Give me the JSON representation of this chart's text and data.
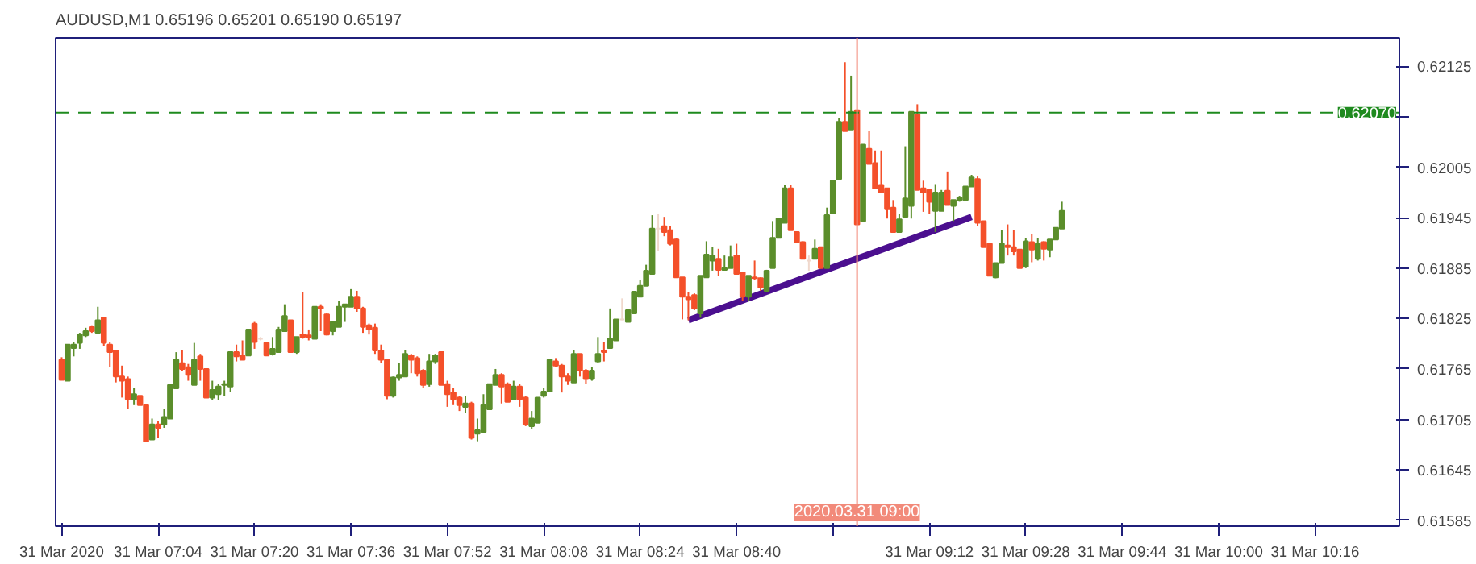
{
  "chart_data": {
    "type": "candlestick",
    "title": "AUDUSD,M1  0.65196 0.65201 0.65190 0.65197",
    "x": [
      "2020-03-31T06:48",
      "2020-03-31T06:49",
      "2020-03-31T06:50",
      "2020-03-31T06:51",
      "2020-03-31T06:52",
      "2020-03-31T06:53",
      "2020-03-31T06:54",
      "2020-03-31T06:55",
      "2020-03-31T06:56",
      "2020-03-31T06:57",
      "2020-03-31T06:58",
      "2020-03-31T06:59",
      "2020-03-31T07:00",
      "2020-03-31T07:01",
      "2020-03-31T07:02",
      "2020-03-31T07:03",
      "2020-03-31T07:04",
      "2020-03-31T07:05",
      "2020-03-31T07:06",
      "2020-03-31T07:07",
      "2020-03-31T07:08",
      "2020-03-31T07:09",
      "2020-03-31T07:10",
      "2020-03-31T07:11",
      "2020-03-31T07:12",
      "2020-03-31T07:13",
      "2020-03-31T07:14",
      "2020-03-31T07:15",
      "2020-03-31T07:16",
      "2020-03-31T07:17",
      "2020-03-31T07:18",
      "2020-03-31T07:19",
      "2020-03-31T07:20",
      "2020-03-31T07:21",
      "2020-03-31T07:22",
      "2020-03-31T07:23",
      "2020-03-31T07:24",
      "2020-03-31T07:25",
      "2020-03-31T07:26",
      "2020-03-31T07:27",
      "2020-03-31T07:28",
      "2020-03-31T07:29",
      "2020-03-31T07:30",
      "2020-03-31T07:31",
      "2020-03-31T07:32",
      "2020-03-31T07:33",
      "2020-03-31T07:34",
      "2020-03-31T07:35",
      "2020-03-31T07:36",
      "2020-03-31T07:37",
      "2020-03-31T07:38",
      "2020-03-31T07:39",
      "2020-03-31T07:40",
      "2020-03-31T07:41",
      "2020-03-31T07:42",
      "2020-03-31T07:43",
      "2020-03-31T07:44",
      "2020-03-31T07:45",
      "2020-03-31T07:46",
      "2020-03-31T07:47",
      "2020-03-31T07:48",
      "2020-03-31T07:49",
      "2020-03-31T07:50",
      "2020-03-31T07:51",
      "2020-03-31T07:52",
      "2020-03-31T07:53",
      "2020-03-31T07:54",
      "2020-03-31T07:55",
      "2020-03-31T07:56",
      "2020-03-31T07:57",
      "2020-03-31T07:58",
      "2020-03-31T07:59",
      "2020-03-31T08:00",
      "2020-03-31T08:01",
      "2020-03-31T08:02",
      "2020-03-31T08:03",
      "2020-03-31T08:04",
      "2020-03-31T08:05",
      "2020-03-31T08:06",
      "2020-03-31T08:07",
      "2020-03-31T08:08",
      "2020-03-31T08:09",
      "2020-03-31T08:10",
      "2020-03-31T08:11",
      "2020-03-31T08:12",
      "2020-03-31T08:13",
      "2020-03-31T08:14",
      "2020-03-31T08:15",
      "2020-03-31T08:16",
      "2020-03-31T08:17",
      "2020-03-31T08:18",
      "2020-03-31T08:19",
      "2020-03-31T08:20",
      "2020-03-31T08:21",
      "2020-03-31T08:22",
      "2020-03-31T08:23",
      "2020-03-31T08:24",
      "2020-03-31T08:25",
      "2020-03-31T08:26",
      "2020-03-31T08:27",
      "2020-03-31T08:28",
      "2020-03-31T08:29",
      "2020-03-31T08:30",
      "2020-03-31T08:31",
      "2020-03-31T08:32",
      "2020-03-31T08:33",
      "2020-03-31T08:34",
      "2020-03-31T08:35",
      "2020-03-31T08:36",
      "2020-03-31T08:37",
      "2020-03-31T08:38",
      "2020-03-31T08:39",
      "2020-03-31T08:40",
      "2020-03-31T08:41",
      "2020-03-31T08:42",
      "2020-03-31T08:43",
      "2020-03-31T08:44",
      "2020-03-31T08:45",
      "2020-03-31T08:46",
      "2020-03-31T08:47",
      "2020-03-31T08:48",
      "2020-03-31T08:49",
      "2020-03-31T08:50",
      "2020-03-31T08:51",
      "2020-03-31T08:52",
      "2020-03-31T08:53",
      "2020-03-31T08:54",
      "2020-03-31T08:55",
      "2020-03-31T08:56",
      "2020-03-31T08:57",
      "2020-03-31T08:58",
      "2020-03-31T08:59",
      "2020-03-31T09:00",
      "2020-03-31T09:01",
      "2020-03-31T09:02",
      "2020-03-31T09:03",
      "2020-03-31T09:04",
      "2020-03-31T09:05",
      "2020-03-31T09:06",
      "2020-03-31T09:07",
      "2020-03-31T09:08",
      "2020-03-31T09:09",
      "2020-03-31T09:10",
      "2020-03-31T09:11",
      "2020-03-31T09:12",
      "2020-03-31T09:13",
      "2020-03-31T09:14",
      "2020-03-31T09:15",
      "2020-03-31T09:16",
      "2020-03-31T09:17",
      "2020-03-31T09:18",
      "2020-03-31T09:19",
      "2020-03-31T09:20",
      "2020-03-31T09:21",
      "2020-03-31T09:22",
      "2020-03-31T09:23",
      "2020-03-31T09:24",
      "2020-03-31T09:25",
      "2020-03-31T09:26",
      "2020-03-31T09:27",
      "2020-03-31T09:28",
      "2020-03-31T09:29",
      "2020-03-31T09:30",
      "2020-03-31T09:31",
      "2020-03-31T09:32",
      "2020-03-31T09:33",
      "2020-03-31T09:34"
    ],
    "ohlc": [
      [
        0.61776,
        0.61779,
        0.61752,
        0.61752
      ],
      [
        0.61751,
        0.61794,
        0.61751,
        0.61794
      ],
      [
        0.6179,
        0.61797,
        0.6178,
        0.61794
      ],
      [
        0.61796,
        0.61808,
        0.61789,
        0.61806
      ],
      [
        0.61805,
        0.61814,
        0.61803,
        0.6181
      ],
      [
        0.61815,
        0.61817,
        0.61808,
        0.6181
      ],
      [
        0.61808,
        0.61839,
        0.61808,
        0.61823
      ],
      [
        0.61826,
        0.61826,
        0.61792,
        0.61796
      ],
      [
        0.61794,
        0.61797,
        0.61767,
        0.61785
      ],
      [
        0.61787,
        0.61787,
        0.61749,
        0.61756
      ],
      [
        0.61756,
        0.61769,
        0.61731,
        0.61751
      ],
      [
        0.61753,
        0.61756,
        0.61717,
        0.61729
      ],
      [
        0.61729,
        0.61742,
        0.61722,
        0.61735
      ],
      [
        0.61733,
        0.61733,
        0.61722,
        0.61722
      ],
      [
        0.61722,
        0.61722,
        0.61678,
        0.61679
      ],
      [
        0.61681,
        0.61706,
        0.61681,
        0.61699
      ],
      [
        0.61699,
        0.61703,
        0.61683,
        0.61695
      ],
      [
        0.61699,
        0.61717,
        0.61695,
        0.61708
      ],
      [
        0.61706,
        0.61746,
        0.61706,
        0.61746
      ],
      [
        0.61742,
        0.61785,
        0.61742,
        0.61776
      ],
      [
        0.61772,
        0.61787,
        0.61763,
        0.61765
      ],
      [
        0.61767,
        0.61771,
        0.61751,
        0.61758
      ],
      [
        0.61746,
        0.61796,
        0.61746,
        0.61776
      ],
      [
        0.6178,
        0.61783,
        0.61751,
        0.61765
      ],
      [
        0.61765,
        0.61765,
        0.61731,
        0.61731
      ],
      [
        0.61731,
        0.61751,
        0.61728,
        0.6174
      ],
      [
        0.61735,
        0.61747,
        0.61728,
        0.61744
      ],
      [
        0.61746,
        0.61751,
        0.61733,
        0.61747
      ],
      [
        0.61744,
        0.61785,
        0.61738,
        0.61785
      ],
      [
        0.61785,
        0.61794,
        0.61774,
        0.6178
      ],
      [
        0.61781,
        0.61799,
        0.61776,
        0.61776
      ],
      [
        0.61781,
        0.61812,
        0.61781,
        0.61812
      ],
      [
        0.61819,
        0.61821,
        0.61789,
        0.61797
      ],
      [
        0.61801,
        0.61803,
        0.61799,
        0.61801
      ],
      [
        0.61796,
        0.61797,
        0.61781,
        0.61781
      ],
      [
        0.61783,
        0.61803,
        0.61781,
        0.61789
      ],
      [
        0.61785,
        0.61815,
        0.61785,
        0.61812
      ],
      [
        0.6181,
        0.61842,
        0.6181,
        0.61828
      ],
      [
        0.61823,
        0.61823,
        0.61785,
        0.61785
      ],
      [
        0.61785,
        0.61803,
        0.61783,
        0.61803
      ],
      [
        0.61806,
        0.61857,
        0.61801,
        0.61803
      ],
      [
        0.61805,
        0.61812,
        0.61799,
        0.61803
      ],
      [
        0.61801,
        0.61839,
        0.61801,
        0.61839
      ],
      [
        0.61839,
        0.61842,
        0.6181,
        0.61837
      ],
      [
        0.6183,
        0.61831,
        0.61805,
        0.61806
      ],
      [
        0.6181,
        0.61821,
        0.61805,
        0.61821
      ],
      [
        0.61815,
        0.61846,
        0.61815,
        0.61839
      ],
      [
        0.61839,
        0.61842,
        0.61821,
        0.61842
      ],
      [
        0.61839,
        0.6186,
        0.61839,
        0.61851
      ],
      [
        0.61851,
        0.61858,
        0.61833,
        0.61837
      ],
      [
        0.61837,
        0.61839,
        0.61808,
        0.61815
      ],
      [
        0.61817,
        0.61819,
        0.61806,
        0.61812
      ],
      [
        0.61814,
        0.61819,
        0.61783,
        0.61787
      ],
      [
        0.61787,
        0.61794,
        0.61772,
        0.61776
      ],
      [
        0.61776,
        0.61776,
        0.61729,
        0.61733
      ],
      [
        0.61733,
        0.61756,
        0.61731,
        0.61755
      ],
      [
        0.61755,
        0.61772,
        0.61751,
        0.61758
      ],
      [
        0.61756,
        0.61787,
        0.61756,
        0.61783
      ],
      [
        0.61781,
        0.61783,
        0.6176,
        0.61776
      ],
      [
        0.61778,
        0.6178,
        0.61756,
        0.6176
      ],
      [
        0.61763,
        0.61765,
        0.61742,
        0.61746
      ],
      [
        0.61747,
        0.61783,
        0.61744,
        0.61774
      ],
      [
        0.61774,
        0.61783,
        0.61771,
        0.61781
      ],
      [
        0.61785,
        0.61785,
        0.61746,
        0.61746
      ],
      [
        0.61747,
        0.61751,
        0.6172,
        0.61735
      ],
      [
        0.61737,
        0.61742,
        0.61722,
        0.61729
      ],
      [
        0.61731,
        0.61733,
        0.61715,
        0.61722
      ],
      [
        0.6172,
        0.61733,
        0.61713,
        0.61724
      ],
      [
        0.61724,
        0.61726,
        0.61681,
        0.61683
      ],
      [
        0.61688,
        0.61706,
        0.61679,
        0.61692
      ],
      [
        0.6169,
        0.61735,
        0.6169,
        0.61722
      ],
      [
        0.61717,
        0.61747,
        0.61717,
        0.61747
      ],
      [
        0.61746,
        0.61765,
        0.61746,
        0.61758
      ],
      [
        0.61758,
        0.6176,
        0.61724,
        0.61744
      ],
      [
        0.61747,
        0.61749,
        0.61726,
        0.61726
      ],
      [
        0.61729,
        0.61751,
        0.61728,
        0.61744
      ],
      [
        0.61744,
        0.61747,
        0.6172,
        0.61729
      ],
      [
        0.61731,
        0.61733,
        0.61697,
        0.61699
      ],
      [
        0.61697,
        0.61715,
        0.61694,
        0.61706
      ],
      [
        0.61701,
        0.61731,
        0.61701,
        0.61731
      ],
      [
        0.61733,
        0.61742,
        0.61731,
        0.61738
      ],
      [
        0.61738,
        0.61776,
        0.61738,
        0.61776
      ],
      [
        0.61774,
        0.61778,
        0.61767,
        0.61769
      ],
      [
        0.61769,
        0.61771,
        0.61737,
        0.61756
      ],
      [
        0.61756,
        0.6176,
        0.61746,
        0.61751
      ],
      [
        0.61749,
        0.61787,
        0.61749,
        0.61783
      ],
      [
        0.61783,
        0.61783,
        0.61756,
        0.61763
      ],
      [
        0.61763,
        0.61765,
        0.61747,
        0.61753
      ],
      [
        0.61753,
        0.61767,
        0.61751,
        0.61763
      ],
      [
        0.61774,
        0.61803,
        0.61772,
        0.61783
      ],
      [
        0.61787,
        0.61797,
        0.61774,
        0.61785
      ],
      [
        0.6179,
        0.61837,
        0.6179,
        0.61801
      ],
      [
        0.61799,
        0.61824,
        0.61799,
        0.61824
      ],
      [
        0.61824,
        0.61849,
        0.61823,
        0.61824
      ],
      [
        0.61821,
        0.61835,
        0.61821,
        0.61835
      ],
      [
        0.61831,
        0.61857,
        0.61831,
        0.61857
      ],
      [
        0.61851,
        0.61871,
        0.61851,
        0.61864
      ],
      [
        0.61864,
        0.61889,
        0.61864,
        0.61882
      ],
      [
        0.61878,
        0.61948,
        0.61878,
        0.61932
      ],
      [
        0.61932,
        0.6195,
        0.61905,
        0.61932
      ],
      [
        0.61935,
        0.61946,
        0.61923,
        0.61928
      ],
      [
        0.6193,
        0.61935,
        0.61912,
        0.61914
      ],
      [
        0.61919,
        0.61921,
        0.61874,
        0.61874
      ],
      [
        0.61874,
        0.61874,
        0.61824,
        0.61851
      ],
      [
        0.61851,
        0.61857,
        0.61823,
        0.61848
      ],
      [
        0.61853,
        0.61855,
        0.61835,
        0.61837
      ],
      [
        0.61831,
        0.61876,
        0.61826,
        0.61876
      ],
      [
        0.61874,
        0.61917,
        0.61874,
        0.61901
      ],
      [
        0.61894,
        0.6191,
        0.61882,
        0.619
      ],
      [
        0.61896,
        0.61908,
        0.61876,
        0.61883
      ],
      [
        0.61883,
        0.619,
        0.61882,
        0.61885
      ],
      [
        0.61885,
        0.61912,
        0.61885,
        0.61898
      ],
      [
        0.619,
        0.61914,
        0.61878,
        0.61878
      ],
      [
        0.6188,
        0.6188,
        0.61846,
        0.61851
      ],
      [
        0.61851,
        0.61876,
        0.61846,
        0.61876
      ],
      [
        0.61874,
        0.61894,
        0.61871,
        0.61873
      ],
      [
        0.61873,
        0.61874,
        0.61858,
        0.61862
      ],
      [
        0.61858,
        0.61883,
        0.61857,
        0.61882
      ],
      [
        0.61885,
        0.61941,
        0.61885,
        0.61921
      ],
      [
        0.61921,
        0.61944,
        0.61921,
        0.61944
      ],
      [
        0.61939,
        0.61984,
        0.61939,
        0.6198
      ],
      [
        0.6198,
        0.61984,
        0.6193,
        0.6193
      ],
      [
        0.61928,
        0.61928,
        0.61916,
        0.61916
      ],
      [
        0.61916,
        0.61917,
        0.61896,
        0.61896
      ],
      [
        0.61894,
        0.619,
        0.61882,
        0.61894
      ],
      [
        0.61896,
        0.61919,
        0.61896,
        0.61908
      ],
      [
        0.6191,
        0.6191,
        0.61885,
        0.61885
      ],
      [
        0.61885,
        0.61957,
        0.61885,
        0.61948
      ],
      [
        0.6195,
        0.61989,
        0.6195,
        0.61989
      ],
      [
        0.61991,
        0.62064,
        0.61991,
        0.62059
      ],
      [
        0.62059,
        0.6213,
        0.62048,
        0.62048
      ],
      [
        0.6205,
        0.62114,
        0.6205,
        0.62071
      ],
      [
        0.62073,
        0.62073,
        0.61937,
        0.61937
      ],
      [
        0.61941,
        0.62032,
        0.61941,
        0.62032
      ],
      [
        0.62027,
        0.62048,
        0.62009,
        0.62009
      ],
      [
        0.6201,
        0.62025,
        0.6198,
        0.6198
      ],
      [
        0.61984,
        0.62025,
        0.61975,
        0.61975
      ],
      [
        0.6198,
        0.6198,
        0.61944,
        0.61955
      ],
      [
        0.61957,
        0.61966,
        0.61928,
        0.61928
      ],
      [
        0.61928,
        0.6195,
        0.61928,
        0.61943
      ],
      [
        0.61946,
        0.6203,
        0.61946,
        0.61968
      ],
      [
        0.61959,
        0.62071,
        0.61944,
        0.62071
      ],
      [
        0.62068,
        0.6208,
        0.61978,
        0.61978
      ],
      [
        0.6198,
        0.61989,
        0.61952,
        0.61975
      ],
      [
        0.61978,
        0.61978,
        0.6195,
        0.61964
      ],
      [
        0.61953,
        0.61985,
        0.61928,
        0.61975
      ],
      [
        0.61953,
        0.61978,
        0.61953,
        0.61975
      ],
      [
        0.61977,
        0.62,
        0.6196,
        0.6196
      ],
      [
        0.61959,
        0.61966,
        0.61941,
        0.61966
      ],
      [
        0.61966,
        0.61971,
        0.61964,
        0.61969
      ],
      [
        0.61966,
        0.61982,
        0.61966,
        0.61982
      ],
      [
        0.61982,
        0.61996,
        0.61982,
        0.61993
      ],
      [
        0.61991,
        0.61994,
        0.61935,
        0.61939
      ],
      [
        0.61941,
        0.61941,
        0.6191,
        0.6191
      ],
      [
        0.61914,
        0.61914,
        0.61876,
        0.61876
      ],
      [
        0.61874,
        0.61891,
        0.61873,
        0.61891
      ],
      [
        0.61891,
        0.6193,
        0.61891,
        0.61914
      ],
      [
        0.61912,
        0.61937,
        0.619,
        0.6191
      ],
      [
        0.6191,
        0.6193,
        0.619,
        0.61905
      ],
      [
        0.61907,
        0.61907,
        0.61885,
        0.61885
      ],
      [
        0.61887,
        0.61921,
        0.61885,
        0.61917
      ],
      [
        0.61916,
        0.61926,
        0.61892,
        0.61907
      ],
      [
        0.61896,
        0.61921,
        0.61894,
        0.61914
      ],
      [
        0.61916,
        0.61917,
        0.61894,
        0.61908
      ],
      [
        0.61907,
        0.61919,
        0.61898,
        0.61919
      ],
      [
        0.61919,
        0.61933,
        0.61919,
        0.61933
      ],
      [
        0.61932,
        0.61964,
        0.61932,
        0.61953
      ]
    ],
    "colors": [
      "#f4502a",
      "#5b8e2b",
      "#5b8e2b",
      "#5b8e2b",
      "#5b8e2b",
      "#f4502a",
      "#5b8e2b",
      "#f4502a",
      "#f4502a",
      "#f4502a",
      "#f4502a",
      "#f4502a",
      "#5b8e2b",
      "#f4502a",
      "#f4502a",
      "#5b8e2b",
      "#f4502a",
      "#5b8e2b",
      "#5b8e2b",
      "#5b8e2b",
      "#f4502a",
      "#f4502a",
      "#5b8e2b",
      "#f4502a",
      "#f4502a",
      "#5b8e2b",
      "#5b8e2b",
      "#5b8e2b",
      "#5b8e2b",
      "#f4502a",
      "#f4502a",
      "#5b8e2b",
      "#f4502a",
      "#f0d8cc",
      "#f4502a",
      "#5b8e2b",
      "#5b8e2b",
      "#5b8e2b",
      "#f4502a",
      "#5b8e2b",
      "#f4502a",
      "#f4502a",
      "#5b8e2b",
      "#f4502a",
      "#f4502a",
      "#5b8e2b",
      "#5b8e2b",
      "#5b8e2b",
      "#5b8e2b",
      "#f4502a",
      "#f4502a",
      "#f4502a",
      "#f4502a",
      "#f4502a",
      "#f4502a",
      "#5b8e2b",
      "#5b8e2b",
      "#5b8e2b",
      "#f4502a",
      "#f4502a",
      "#f4502a",
      "#5b8e2b",
      "#5b8e2b",
      "#f4502a",
      "#f4502a",
      "#f4502a",
      "#f4502a",
      "#5b8e2b",
      "#f4502a",
      "#5b8e2b",
      "#5b8e2b",
      "#5b8e2b",
      "#5b8e2b",
      "#f4502a",
      "#f4502a",
      "#5b8e2b",
      "#f4502a",
      "#f4502a",
      "#5b8e2b",
      "#5b8e2b",
      "#5b8e2b",
      "#5b8e2b",
      "#f4502a",
      "#f4502a",
      "#f4502a",
      "#5b8e2b",
      "#f4502a",
      "#f4502a",
      "#5b8e2b",
      "#5b8e2b",
      "#f4502a",
      "#5b8e2b",
      "#5b8e2b",
      "#f0d8cc",
      "#5b8e2b",
      "#5b8e2b",
      "#5b8e2b",
      "#5b8e2b",
      "#5b8e2b",
      "#f0d8cc",
      "#f4502a",
      "#f4502a",
      "#f4502a",
      "#f4502a",
      "#f4502a",
      "#f4502a",
      "#5b8e2b",
      "#5b8e2b",
      "#5b8e2b",
      "#f4502a",
      "#5b8e2b",
      "#5b8e2b",
      "#f4502a",
      "#f4502a",
      "#5b8e2b",
      "#f4502a",
      "#f4502a",
      "#5b8e2b",
      "#5b8e2b",
      "#5b8e2b",
      "#5b8e2b",
      "#f4502a",
      "#f4502a",
      "#f4502a",
      "#f0d8cc",
      "#5b8e2b",
      "#f4502a",
      "#5b8e2b",
      "#5b8e2b",
      "#5b8e2b",
      "#f4502a",
      "#5b8e2b",
      "#f4502a",
      "#5b8e2b",
      "#f4502a",
      "#f4502a",
      "#f4502a",
      "#f4502a",
      "#f4502a",
      "#5b8e2b",
      "#5b8e2b",
      "#5b8e2b",
      "#f4502a",
      "#f4502a",
      "#f4502a",
      "#5b8e2b",
      "#5b8e2b",
      "#f4502a",
      "#5b8e2b",
      "#5b8e2b",
      "#5b8e2b",
      "#5b8e2b",
      "#f4502a",
      "#f4502a",
      "#f4502a",
      "#5b8e2b",
      "#5b8e2b",
      "#f4502a",
      "#f4502a",
      "#f4502a",
      "#5b8e2b",
      "#f4502a",
      "#5b8e2b",
      "#f4502a",
      "#5b8e2b",
      "#5b8e2b",
      "#5b8e2b"
    ],
    "series": [
      {
        "type": "line",
        "color": "#4b0f8f",
        "x": [
          "2020-03-31T08:32",
          "2020-03-31T09:19"
        ],
        "values": [
          0.61823,
          0.61946
        ]
      }
    ],
    "xlim": [
      "2020-03-31T06:47",
      "2020-03-31T10:30"
    ],
    "xticks": [
      {
        "value": "2020-03-31T06:48",
        "label": "31 Mar 2020"
      },
      {
        "value": "2020-03-31T07:04",
        "label": "31 Mar 07:04"
      },
      {
        "value": "2020-03-31T07:20",
        "label": "31 Mar 07:20"
      },
      {
        "value": "2020-03-31T07:36",
        "label": "31 Mar 07:36"
      },
      {
        "value": "2020-03-31T07:52",
        "label": "31 Mar 07:52"
      },
      {
        "value": "2020-03-31T08:08",
        "label": "31 Mar 08:08"
      },
      {
        "value": "2020-03-31T08:24",
        "label": "31 Mar 08:24"
      },
      {
        "value": "2020-03-31T08:40",
        "label": "31 Mar 08:40"
      },
      {
        "value": "2020-03-31T08:56",
        "label": null
      },
      {
        "value": "2020-03-31T09:12",
        "label": "31 Mar 09:12"
      },
      {
        "value": "2020-03-31T09:28",
        "label": "31 Mar 09:28"
      },
      {
        "value": "2020-03-31T09:44",
        "label": "31 Mar 09:44"
      },
      {
        "value": "2020-03-31T10:00",
        "label": "31 Mar 10:00"
      },
      {
        "value": "2020-03-31T10:16",
        "label": "31 Mar 10:16"
      }
    ],
    "ylim": [
      0.61578,
      0.62159
    ],
    "yticks": [
      {
        "value": 0.62125,
        "label": "0.62125"
      },
      {
        "value": 0.62065,
        "label": null
      },
      {
        "value": 0.62005,
        "label": "0.62005"
      },
      {
        "value": 0.61945,
        "label": "0.61945"
      },
      {
        "value": 0.61885,
        "label": "0.61885"
      },
      {
        "value": 0.61825,
        "label": "0.61825"
      },
      {
        "value": 0.61765,
        "label": "0.61765"
      },
      {
        "value": 0.61705,
        "label": "0.61705"
      },
      {
        "value": 0.61645,
        "label": "0.61645"
      },
      {
        "value": 0.61585,
        "label": "0.61585"
      }
    ],
    "ref_lines": [
      {
        "axis": "y",
        "value": 0.6207,
        "label": "0.62070",
        "color": "#1e8a1e",
        "line_style": "dashed"
      },
      {
        "axis": "x",
        "value": "2020-03-31T09:00",
        "label": "2020.03.31 09:00",
        "color": "#f28a7a",
        "line_style": "solid"
      }
    ],
    "grid": false
  }
}
